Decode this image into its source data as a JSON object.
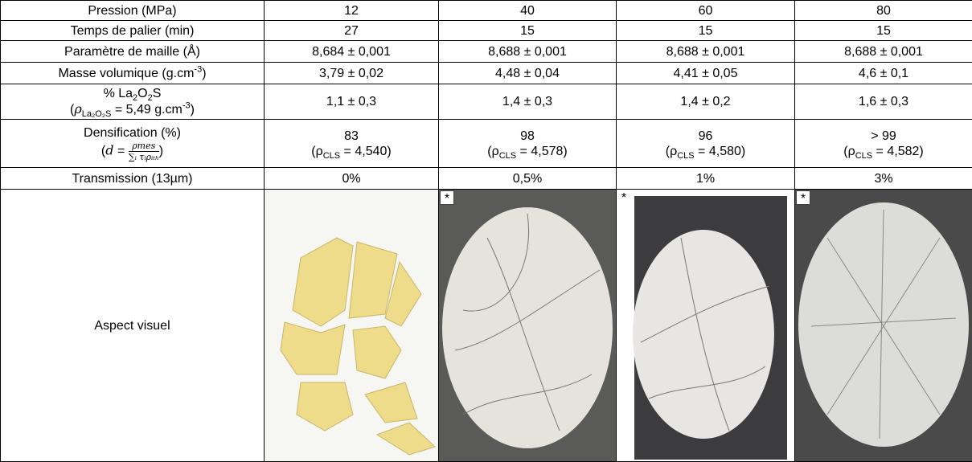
{
  "table": {
    "rows": [
      {
        "label": "Pression (MPa)",
        "cells": [
          "12",
          "40",
          "60",
          "80"
        ]
      },
      {
        "label": "Temps de palier (min)",
        "cells": [
          "27",
          "15",
          "15",
          "15"
        ]
      },
      {
        "label": "Paramètre de maille (Å)",
        "cells": [
          "8,684 ± 0,001",
          "8,688 ± 0,001",
          "8,688 ± 0,001",
          "8,688 ± 0,001"
        ]
      },
      {
        "label": [
          "Masse volumique (g.cm",
          {
            "sup": "-3"
          },
          ")"
        ],
        "cells": [
          "3,79 ± 0,02",
          "4,48 ± 0,04",
          "4,41 ± 0,05",
          "4,6 ± 0,1"
        ]
      },
      {
        "label": {
          "lines": [
            [
              "% La",
              {
                "sub": "2"
              },
              "O",
              {
                "sub": "2"
              },
              "S"
            ],
            [
              "(",
              {
                "i": "ρ"
              },
              {
                "sub": "La₂O₂S"
              },
              " = 5,49 g.cm",
              {
                "sup": "-3"
              },
              ")"
            ]
          ]
        },
        "cells": [
          "1,1 ± 0,3",
          "1,4 ± 0,3",
          "1,4 ± 0,2",
          "1,6 ± 0,3"
        ]
      },
      {
        "label": {
          "lines": [
            "Densification (%)",
            [
              "(",
              {
                "i": "d"
              },
              " = ",
              {
                "num": "ρmes",
                "den": "∑ᵢ τᵢρᵢₜₕ"
              },
              ")"
            ]
          ]
        },
        "cells": [
          {
            "lines": [
              "83",
              [
                "(ρ",
                {
                  "sub": "CLS"
                },
                " = 4,540)"
              ]
            ]
          },
          {
            "lines": [
              "98",
              [
                "(ρ",
                {
                  "sub": "CLS"
                },
                " = 4,578)"
              ]
            ]
          },
          {
            "lines": [
              "96",
              [
                "(ρ",
                {
                  "sub": "CLS"
                },
                " = 4,580)"
              ]
            ]
          },
          {
            "lines": [
              "> 99",
              [
                "(ρ",
                {
                  "sub": "CLS"
                },
                " = 4,582)"
              ]
            ]
          }
        ]
      },
      {
        "label": "Transmission (13µm)",
        "cells": [
          "0%",
          "0,5%",
          "1%",
          "3%"
        ]
      },
      {
        "label": "Aspect visuel",
        "cells": [
          null,
          "*",
          "*",
          "*"
        ]
      }
    ]
  }
}
